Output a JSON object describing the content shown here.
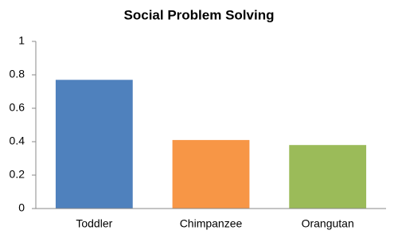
{
  "chart_data": {
    "type": "bar",
    "title": "Social Problem Solving",
    "categories": [
      "Toddler",
      "Chimpanzee",
      "Orangutan"
    ],
    "values": [
      0.77,
      0.41,
      0.38
    ],
    "colors": [
      "#4f81bd",
      "#f79646",
      "#9bbb59"
    ],
    "ylim": [
      0,
      1
    ],
    "yticks": [
      0,
      0.2,
      0.4,
      0.6,
      0.8,
      1
    ],
    "grid": false
  }
}
